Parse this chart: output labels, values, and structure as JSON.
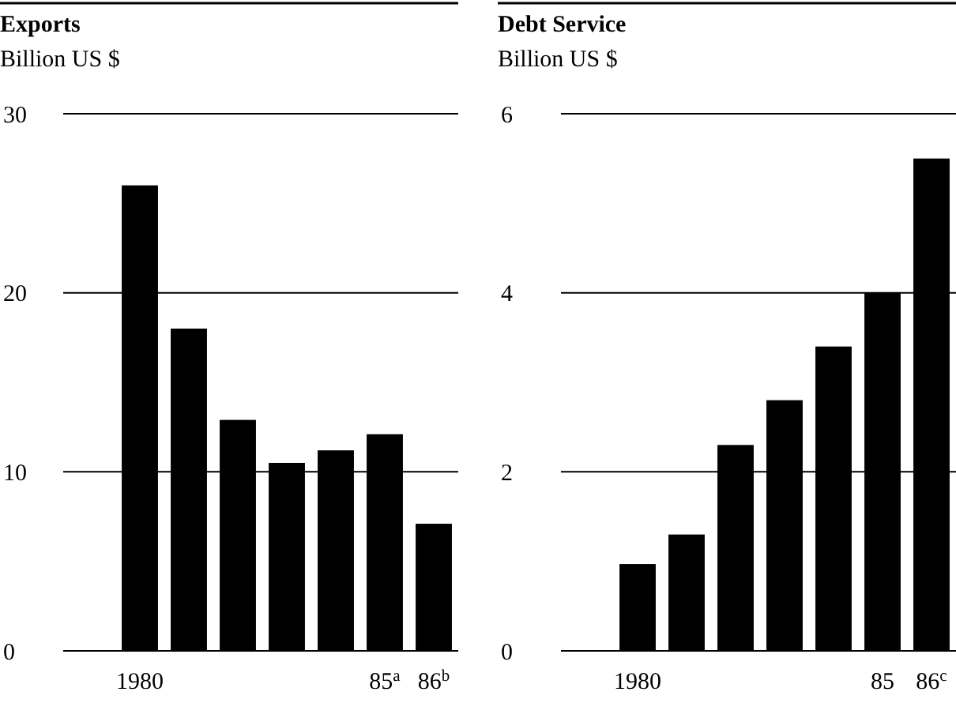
{
  "chart_data": [
    {
      "type": "bar",
      "title": "Exports",
      "subtitle": "Billion US $",
      "categories": [
        "1980",
        null,
        null,
        null,
        null,
        "85$^{a}$",
        "86$^{b}$"
      ],
      "values": [
        26,
        18,
        12.9,
        10.5,
        11.2,
        12.1,
        7.1
      ],
      "color": "#000000",
      "ylim": [
        0,
        30
      ],
      "yticks": [
        0,
        10,
        20,
        30
      ],
      "grid": "y"
    },
    {
      "type": "bar",
      "title": "Debt Service",
      "subtitle": "Billion US $",
      "categories": [
        null,
        "1980",
        null,
        null,
        null,
        null,
        "85",
        "86$^{c}$"
      ],
      "values": [
        null,
        0.97,
        1.3,
        2.3,
        2.8,
        3.4,
        4.0,
        5.5
      ],
      "color": "#000000",
      "ylim": [
        0,
        6
      ],
      "yticks": [
        0,
        2,
        4,
        6
      ],
      "grid": "y"
    }
  ]
}
